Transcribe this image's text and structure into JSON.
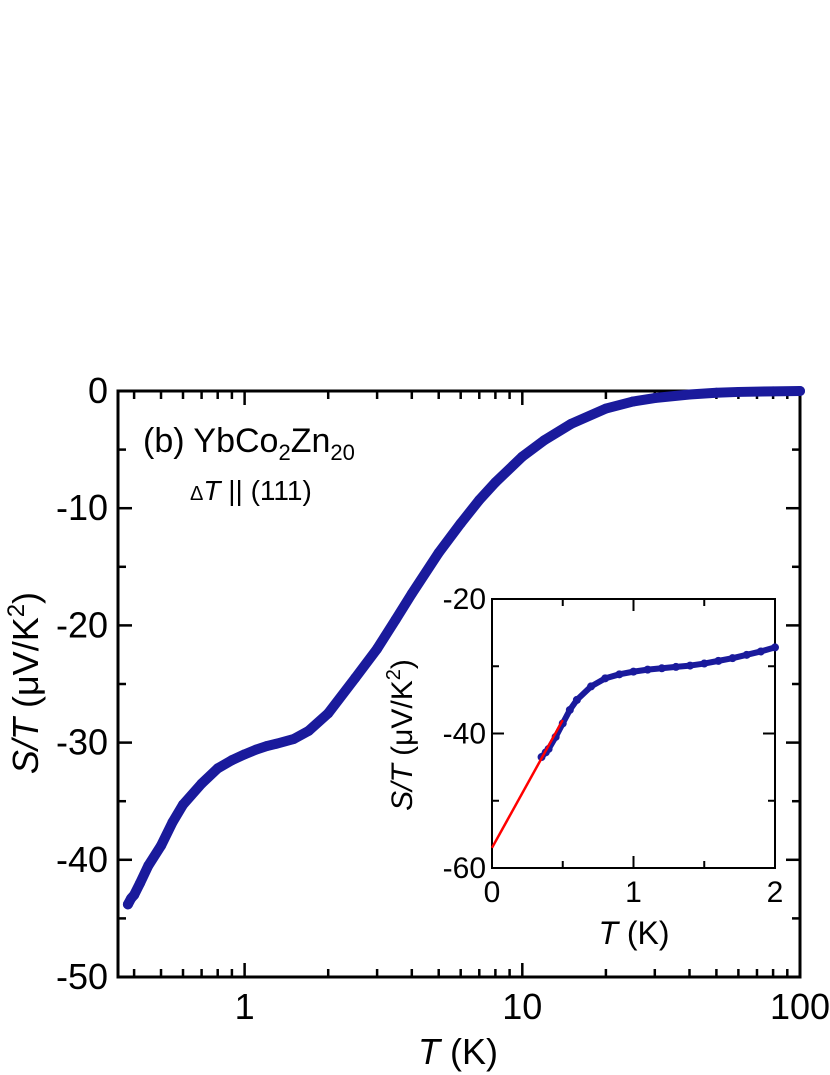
{
  "chart_data": [
    {
      "type": "scatter",
      "panel_label": "(b)",
      "compound": {
        "base": "YbCo",
        "sub1": "2",
        "mid": "Zn",
        "sub2": "20"
      },
      "annotation": {
        "delta": "Δ",
        "italic": "T",
        "rest": " || (111)"
      },
      "xlabel": {
        "italic": "T",
        "rest": " (K)"
      },
      "ylabel": {
        "italic": "S/T",
        "rest": " (μV/K",
        "sup": "2",
        "close": ")"
      },
      "xscale": "log",
      "xlim": [
        0.35,
        100
      ],
      "ylim": [
        -50,
        0
      ],
      "xticks": [
        "1",
        "10",
        "100"
      ],
      "yticks": [
        "0",
        "-10",
        "-20",
        "-30",
        "-40",
        "-50"
      ],
      "series": [
        {
          "color": "#1a1a9c",
          "x": [
            0.38,
            0.39,
            0.4,
            0.42,
            0.45,
            0.5,
            0.55,
            0.6,
            0.7,
            0.8,
            0.9,
            1.0,
            1.1,
            1.2,
            1.3,
            1.5,
            1.7,
            2.0,
            2.5,
            3.0,
            3.5,
            4.0,
            5.0,
            6.0,
            7.0,
            8.0,
            10.0,
            12.0,
            15.0,
            20.0,
            25.0,
            30.0,
            40.0,
            50.0,
            60.0,
            80.0,
            100.0
          ],
          "y": [
            -43.8,
            -43.3,
            -43.0,
            -42.0,
            -40.5,
            -38.8,
            -36.8,
            -35.3,
            -33.5,
            -32.2,
            -31.5,
            -31.0,
            -30.6,
            -30.3,
            -30.1,
            -29.7,
            -29.0,
            -27.5,
            -24.5,
            -22.0,
            -19.5,
            -17.3,
            -13.8,
            -11.3,
            -9.3,
            -7.8,
            -5.6,
            -4.2,
            -2.8,
            -1.5,
            -0.9,
            -0.6,
            -0.3,
            -0.15,
            -0.08,
            -0.03,
            0.0
          ]
        }
      ]
    },
    {
      "type": "scatter",
      "role": "inset",
      "xlabel": {
        "italic": "T",
        "rest": " (K)"
      },
      "ylabel": {
        "italic": "S/T",
        "rest": " (μV/K",
        "sup": "2",
        "close": ")"
      },
      "xlim": [
        0,
        2
      ],
      "ylim": [
        -60,
        -20
      ],
      "xticks": [
        "0",
        "1",
        "2"
      ],
      "yticks": [
        "-20",
        "-40",
        "-60"
      ],
      "series": [
        {
          "color": "#1a1a9c",
          "x": [
            0.35,
            0.38,
            0.4,
            0.45,
            0.5,
            0.55,
            0.6,
            0.7,
            0.8,
            0.9,
            1.0,
            1.1,
            1.2,
            1.3,
            1.4,
            1.5,
            1.6,
            1.7,
            1.8,
            1.9,
            2.0
          ],
          "y": [
            -43.5,
            -42.8,
            -42.3,
            -40.5,
            -38.5,
            -36.5,
            -35.0,
            -33.0,
            -31.8,
            -31.2,
            -30.8,
            -30.5,
            -30.3,
            -30.1,
            -29.9,
            -29.6,
            -29.2,
            -28.8,
            -28.3,
            -27.8,
            -27.2
          ]
        },
        {
          "name": "fit",
          "color": "#ff0000",
          "x": [
            0,
            0.5
          ],
          "y": [
            -57,
            -38
          ]
        }
      ]
    }
  ]
}
